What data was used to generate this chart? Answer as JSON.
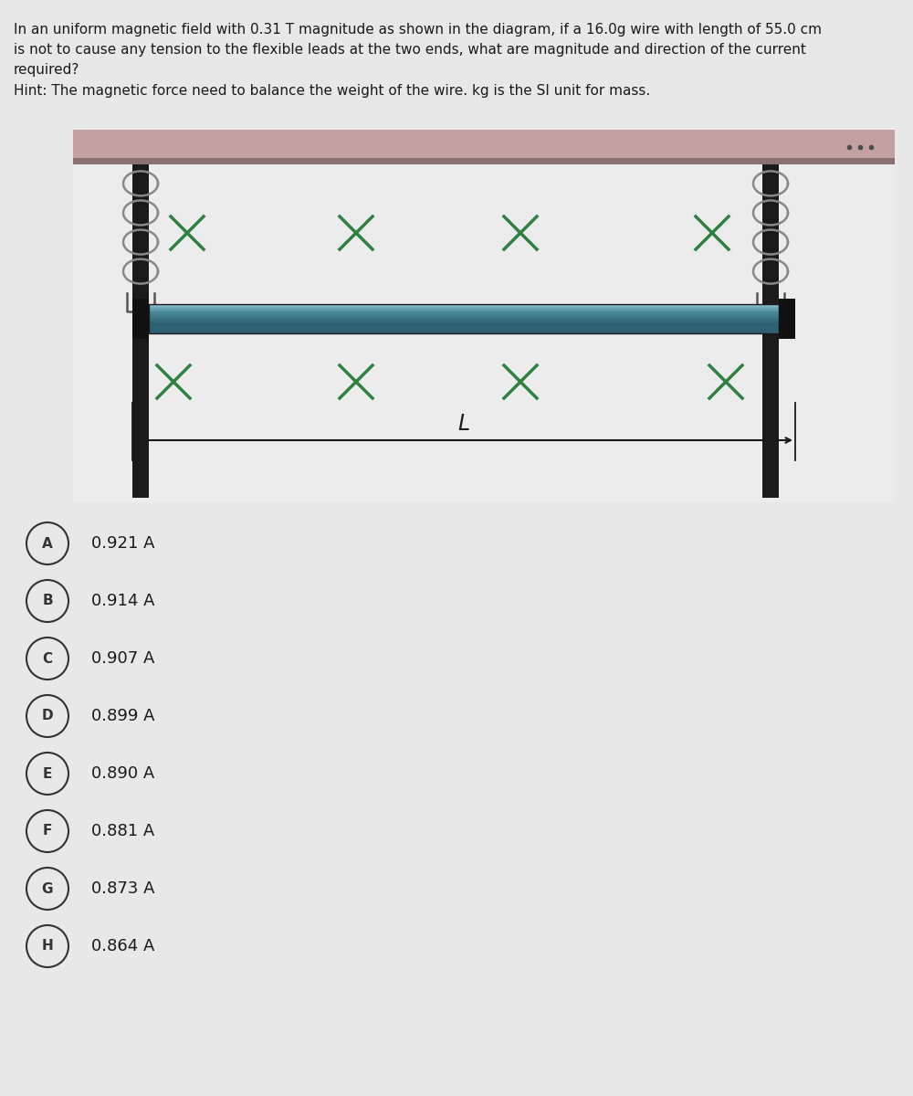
{
  "title_text": "In an uniform magnetic field with 0.31 T magnitude as shown in the diagram, if a 16.0g wire with length of 55.0 cm\nis not to cause any tension to the flexible leads at the two ends, what are magnitude and direction of the current\nrequired?\nHint: The magnetic force need to balance the weight of the wire. kg is the SI unit for mass.",
  "background_color": "#e8e8e8",
  "diagram_bg": "#ececec",
  "top_bar_color": "#c4a0a0",
  "top_bar_dark": "#8b7070",
  "wire_color_top": "#8bbfcc",
  "wire_color_mid": "#4a8a9a",
  "wire_color_bot": "#2d6070",
  "black_bar_color": "#1a1a1a",
  "spring_color": "#888888",
  "cross_color": "#2d8040",
  "arrow_color": "#1a1a1a",
  "choices": [
    {
      "label": "A",
      "text": "0.921 A"
    },
    {
      "label": "B",
      "text": "0.914 A"
    },
    {
      "label": "C",
      "text": "0.907 A"
    },
    {
      "label": "D",
      "text": "0.899 A"
    },
    {
      "label": "E",
      "text": "0.890 A"
    },
    {
      "label": "F",
      "text": "0.881 A"
    },
    {
      "label": "G",
      "text": "0.873 A"
    },
    {
      "label": "H",
      "text": "0.864 A"
    }
  ]
}
